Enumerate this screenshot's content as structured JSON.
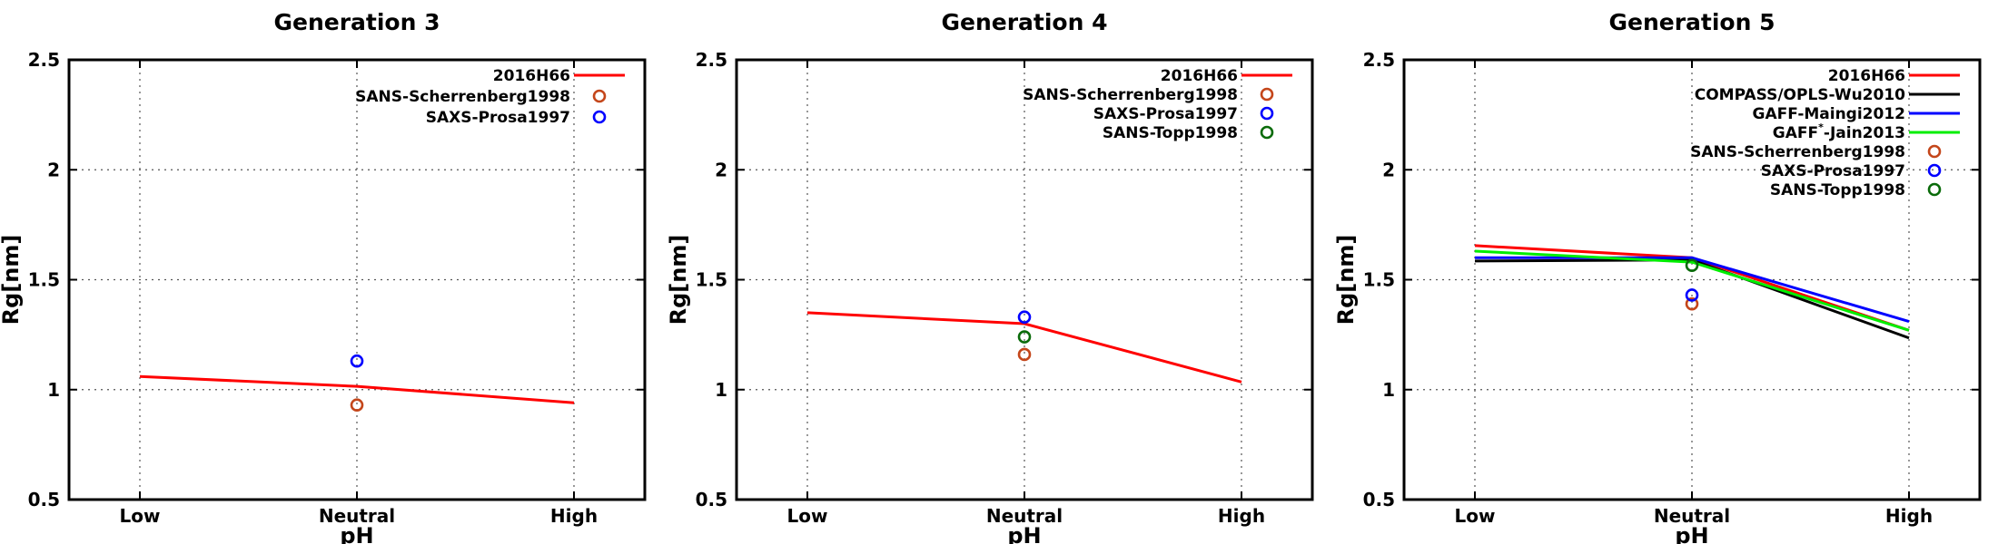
{
  "chart_data": [
    {
      "type": "line",
      "title": "Generation 3",
      "xlabel": "pH",
      "ylabel": "Rg[nm]",
      "categories": [
        "Low",
        "Neutral",
        "High"
      ],
      "ylim": [
        0.5,
        2.5
      ],
      "yticks": [
        "0.5",
        "1",
        "1.5",
        "2",
        "2.5"
      ],
      "grid": true,
      "legend_position": "top-right",
      "series": [
        {
          "name": "2016H66",
          "kind": "line",
          "color": "#ff0000",
          "values": [
            1.06,
            1.015,
            0.94
          ]
        },
        {
          "name": "SANS-Scherrenberg1998",
          "kind": "point",
          "color": "#c4461a",
          "points": [
            {
              "x": "Neutral",
              "y": 0.93
            }
          ]
        },
        {
          "name": "SAXS-Prosa1997",
          "kind": "point",
          "color": "#0000ff",
          "points": [
            {
              "x": "Neutral",
              "y": 1.13
            }
          ]
        }
      ]
    },
    {
      "type": "line",
      "title": "Generation 4",
      "xlabel": "pH",
      "ylabel": "Rg[nm]",
      "categories": [
        "Low",
        "Neutral",
        "High"
      ],
      "ylim": [
        0.5,
        2.5
      ],
      "yticks": [
        "0.5",
        "1",
        "1.5",
        "2",
        "2.5"
      ],
      "grid": true,
      "legend_position": "top-right",
      "series": [
        {
          "name": "2016H66",
          "kind": "line",
          "color": "#ff0000",
          "values": [
            1.35,
            1.3,
            1.035
          ]
        },
        {
          "name": "SANS-Scherrenberg1998",
          "kind": "point",
          "color": "#c4461a",
          "points": [
            {
              "x": "Neutral",
              "y": 1.16
            }
          ]
        },
        {
          "name": "SAXS-Prosa1997",
          "kind": "point",
          "color": "#0000ff",
          "points": [
            {
              "x": "Neutral",
              "y": 1.33
            }
          ]
        },
        {
          "name": "SANS-Topp1998",
          "kind": "point",
          "color": "#0a6b0a",
          "points": [
            {
              "x": "Neutral",
              "y": 1.24
            }
          ]
        }
      ]
    },
    {
      "type": "line",
      "title": "Generation 5",
      "xlabel": "pH",
      "ylabel": "Rg[nm]",
      "categories": [
        "Low",
        "Neutral",
        "High"
      ],
      "ylim": [
        0.5,
        2.5
      ],
      "yticks": [
        "0.5",
        "1",
        "1.5",
        "2",
        "2.5"
      ],
      "grid": true,
      "legend_position": "top-right",
      "series": [
        {
          "name": "2016H66",
          "kind": "line",
          "color": "#ff0000",
          "values": [
            1.655,
            1.6,
            1.27
          ]
        },
        {
          "name": "COMPASS/OPLS-Wu2010",
          "kind": "line",
          "color": "#000000",
          "values": [
            1.585,
            1.59,
            1.235
          ]
        },
        {
          "name": "GAFF-Maingi2012",
          "kind": "line",
          "color": "#0000ff",
          "values": [
            1.6,
            1.6,
            1.31
          ]
        },
        {
          "name": "GAFF*-Jain2013",
          "name_base": "GAFF",
          "name_sup": "*",
          "name_rest": "-Jain2013",
          "kind": "line",
          "color": "#00ee00",
          "values": [
            1.63,
            1.58,
            1.27
          ]
        },
        {
          "name": "SANS-Scherrenberg1998",
          "kind": "point",
          "color": "#c4461a",
          "points": [
            {
              "x": "Neutral",
              "y": 1.39
            }
          ]
        },
        {
          "name": "SAXS-Prosa1997",
          "kind": "point",
          "color": "#0000ff",
          "points": [
            {
              "x": "Neutral",
              "y": 1.43
            }
          ]
        },
        {
          "name": "SANS-Topp1998",
          "kind": "point",
          "color": "#0a6b0a",
          "points": [
            {
              "x": "Neutral",
              "y": 1.565
            }
          ]
        }
      ]
    }
  ]
}
